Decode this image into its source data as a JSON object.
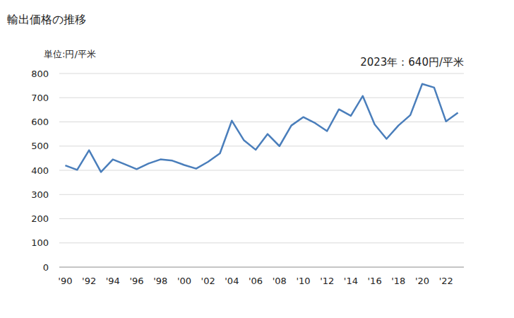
{
  "chart_data": {
    "type": "line",
    "title": "輸出価格の推移",
    "ylabel": "単位:円/平米",
    "annotation": "2023年：640円/平米",
    "categories": [
      "'90",
      null,
      "'92",
      null,
      "'94",
      null,
      "'96",
      null,
      "'98",
      null,
      "'00",
      null,
      "'02",
      null,
      "'04",
      null,
      "'06",
      null,
      "'08",
      null,
      "'10",
      null,
      "'12",
      null,
      "'14",
      null,
      "'16",
      null,
      "'18",
      null,
      "'20",
      null,
      "'22",
      null
    ],
    "values": [
      420,
      402,
      483,
      393,
      445,
      425,
      405,
      428,
      445,
      440,
      422,
      407,
      435,
      470,
      605,
      525,
      485,
      550,
      500,
      585,
      620,
      595,
      562,
      652,
      625,
      707,
      590,
      530,
      585,
      628,
      757,
      742,
      602,
      638
    ],
    "color": "#4a7ebb",
    "ylim": [
      0,
      800
    ],
    "yticks": [
      0,
      100,
      200,
      300,
      400,
      500,
      600,
      700,
      800
    ],
    "grid": true
  }
}
